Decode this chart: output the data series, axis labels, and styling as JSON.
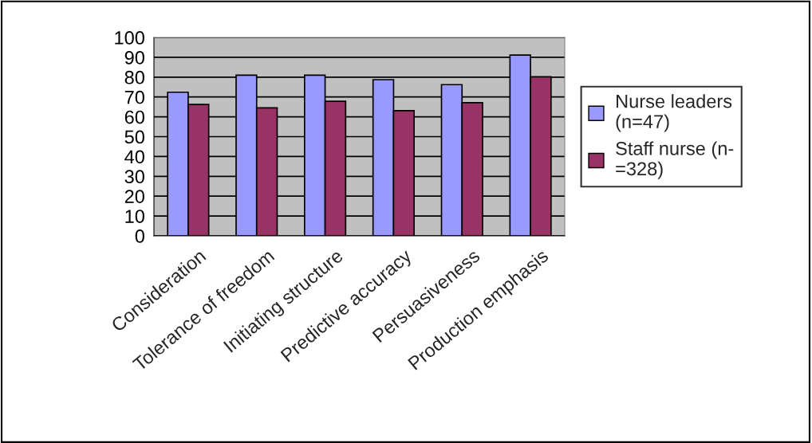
{
  "chart_data": {
    "type": "bar",
    "categories": [
      "Consideration",
      "Tolerance of freedom",
      "Initiating structure",
      "Predictive accuracy",
      "Persuasiveness",
      "Production emphasis"
    ],
    "series": [
      {
        "name": "Nurse leaders\n(n=47)",
        "color": "#9999ff",
        "values": [
          72.4,
          81,
          81,
          78.7,
          76.2,
          91.1
        ]
      },
      {
        "name": "Staff nurse (n-\n=328)",
        "color": "#993366",
        "values": [
          66.2,
          64.5,
          67.8,
          63.1,
          67.1,
          80.2
        ]
      }
    ],
    "ylim": [
      0,
      100
    ],
    "yticks": [
      0,
      10,
      20,
      30,
      40,
      50,
      60,
      70,
      80,
      90,
      100
    ],
    "grid": "y",
    "legend": "right"
  }
}
